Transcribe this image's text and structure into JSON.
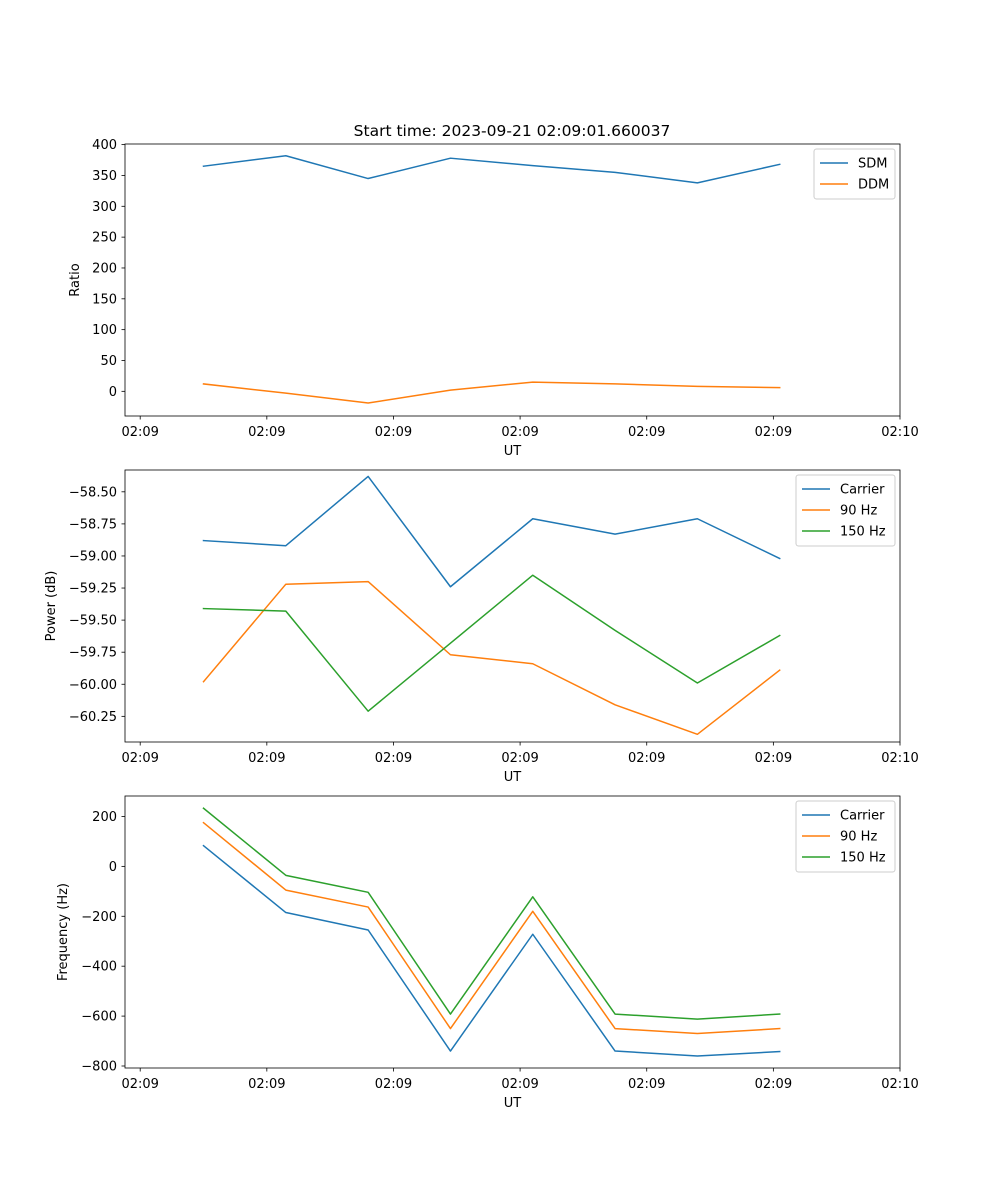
{
  "figure_title": "Start time: 2023-09-21 02:09:01.660037",
  "colors": {
    "blue": "#1f77b4",
    "orange": "#ff7f0e",
    "green": "#2ca02c"
  },
  "chart_data": [
    {
      "type": "line",
      "title": "Start time: 2023-09-21 02:09:01.660037",
      "xlabel": "UT",
      "ylabel": "Ratio",
      "x": [
        0.5,
        1.15,
        1.8,
        2.45,
        3.1,
        3.75,
        4.4,
        5.05
      ],
      "xlim": [
        -0.12,
        6.0
      ],
      "x_ticks": [
        0,
        1,
        2,
        3,
        4,
        5,
        6
      ],
      "x_tick_labels": [
        "02:09",
        "02:09",
        "02:09",
        "02:09",
        "02:09",
        "02:09",
        "02:10"
      ],
      "ylim": [
        -40,
        401
      ],
      "y_ticks": [
        0,
        50,
        100,
        150,
        200,
        250,
        300,
        350,
        400
      ],
      "y_tick_labels": [
        "0",
        "50",
        "100",
        "150",
        "200",
        "250",
        "300",
        "350",
        "400"
      ],
      "legend_position": "top-right",
      "series": [
        {
          "name": "SDM",
          "color": "#1f77b4",
          "values": [
            365,
            382,
            345,
            378,
            366,
            355,
            338,
            368
          ]
        },
        {
          "name": "DDM",
          "color": "#ff7f0e",
          "values": [
            12,
            -3,
            -19,
            2,
            15,
            12,
            8,
            6
          ]
        }
      ]
    },
    {
      "type": "line",
      "title": "",
      "xlabel": "UT",
      "ylabel": "Power (dB)",
      "x": [
        0.5,
        1.15,
        1.8,
        2.45,
        3.1,
        3.75,
        4.4,
        5.05
      ],
      "xlim": [
        -0.12,
        6.0
      ],
      "x_ticks": [
        0,
        1,
        2,
        3,
        4,
        5,
        6
      ],
      "x_tick_labels": [
        "02:09",
        "02:09",
        "02:09",
        "02:09",
        "02:09",
        "02:09",
        "02:10"
      ],
      "ylim": [
        -60.45,
        -58.33
      ],
      "y_ticks": [
        -58.5,
        -58.75,
        -59.0,
        -59.25,
        -59.5,
        -59.75,
        -60.0,
        -60.25
      ],
      "y_tick_labels": [
        "−58.50",
        "−58.75",
        "−59.00",
        "−59.25",
        "−59.50",
        "−59.75",
        "−60.00",
        "−60.25"
      ],
      "legend_position": "top-right",
      "series": [
        {
          "name": "Carrier",
          "color": "#1f77b4",
          "values": [
            -58.88,
            -58.92,
            -58.38,
            -59.24,
            -58.71,
            -58.83,
            -58.71,
            -59.02
          ]
        },
        {
          "name": "90 Hz",
          "color": "#ff7f0e",
          "values": [
            -59.98,
            -59.22,
            -59.2,
            -59.77,
            -59.84,
            -60.16,
            -60.39,
            -59.89
          ]
        },
        {
          "name": "150 Hz",
          "color": "#2ca02c",
          "values": [
            -59.41,
            -59.43,
            -60.21,
            -59.68,
            -59.15,
            -59.58,
            -59.99,
            -59.62
          ]
        }
      ]
    },
    {
      "type": "line",
      "title": "",
      "xlabel": "UT",
      "ylabel": "Frequency (Hz)",
      "x": [
        0.5,
        1.15,
        1.8,
        2.45,
        3.1,
        3.75,
        4.4,
        5.05
      ],
      "xlim": [
        -0.12,
        6.0
      ],
      "x_ticks": [
        0,
        1,
        2,
        3,
        4,
        5,
        6
      ],
      "x_tick_labels": [
        "02:09",
        "02:09",
        "02:09",
        "02:09",
        "02:09",
        "02:09",
        "02:10"
      ],
      "ylim": [
        -808,
        282
      ],
      "y_ticks": [
        200,
        0,
        -200,
        -400,
        -600,
        -800
      ],
      "y_tick_labels": [
        "200",
        "0",
        "−200",
        "−400",
        "−600",
        "−800"
      ],
      "legend_position": "top-right",
      "series": [
        {
          "name": "Carrier",
          "color": "#1f77b4",
          "values": [
            83,
            -185,
            -255,
            -740,
            -272,
            -740,
            -760,
            -742
          ]
        },
        {
          "name": "90 Hz",
          "color": "#ff7f0e",
          "values": [
            175,
            -95,
            -163,
            -650,
            -180,
            -650,
            -670,
            -650
          ]
        },
        {
          "name": "150 Hz",
          "color": "#2ca02c",
          "values": [
            233,
            -36,
            -104,
            -592,
            -122,
            -592,
            -612,
            -592
          ]
        }
      ]
    }
  ]
}
